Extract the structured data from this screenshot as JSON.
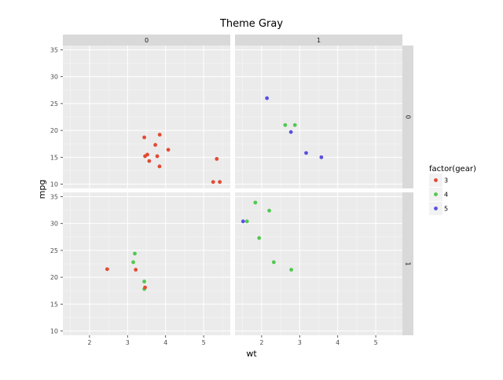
{
  "chart_data": {
    "type": "scatter",
    "title": "Theme Gray",
    "xlabel": "wt",
    "ylabel": "mpg",
    "xlim": [
      1.3,
      5.7
    ],
    "ylim": [
      9.2,
      35.8
    ],
    "x_ticks": [
      2,
      3,
      4,
      5
    ],
    "y_ticks": [
      10,
      15,
      20,
      25,
      30,
      35
    ],
    "grid": true,
    "facet_cols": [
      "0",
      "1"
    ],
    "facet_rows": [
      "0",
      "1"
    ],
    "legend": {
      "title": "factor(gear)",
      "position": "right",
      "entries": [
        {
          "label": "3",
          "color": "#E24A33"
        },
        {
          "label": "4",
          "color": "#50C850"
        },
        {
          "label": "5",
          "color": "#5A4FE0"
        }
      ]
    },
    "panels": [
      {
        "col": 0,
        "row": 0,
        "points": [
          {
            "x": 3.44,
            "y": 18.7,
            "g": 0
          },
          {
            "x": 3.46,
            "y": 15.2,
            "g": 0
          },
          {
            "x": 3.52,
            "y": 15.5,
            "g": 0
          },
          {
            "x": 3.57,
            "y": 14.3,
            "g": 0
          },
          {
            "x": 3.73,
            "y": 17.3,
            "g": 0
          },
          {
            "x": 3.78,
            "y": 15.2,
            "g": 0
          },
          {
            "x": 3.84,
            "y": 13.3,
            "g": 0
          },
          {
            "x": 3.845,
            "y": 19.2,
            "g": 0
          },
          {
            "x": 4.07,
            "y": 16.4,
            "g": 0
          },
          {
            "x": 5.25,
            "y": 10.4,
            "g": 0
          },
          {
            "x": 5.345,
            "y": 14.7,
            "g": 0
          },
          {
            "x": 5.424,
            "y": 10.4,
            "g": 0
          }
        ]
      },
      {
        "col": 1,
        "row": 0,
        "points": [
          {
            "x": 2.14,
            "y": 26.0,
            "g": 2
          },
          {
            "x": 2.62,
            "y": 21.0,
            "g": 1
          },
          {
            "x": 2.77,
            "y": 19.7,
            "g": 2
          },
          {
            "x": 2.875,
            "y": 21.0,
            "g": 1
          },
          {
            "x": 3.17,
            "y": 15.8,
            "g": 2
          },
          {
            "x": 3.57,
            "y": 15.0,
            "g": 2
          }
        ]
      },
      {
        "col": 0,
        "row": 1,
        "points": [
          {
            "x": 2.465,
            "y": 21.5,
            "g": 0
          },
          {
            "x": 3.15,
            "y": 22.8,
            "g": 1
          },
          {
            "x": 3.19,
            "y": 24.4,
            "g": 1
          },
          {
            "x": 3.215,
            "y": 21.4,
            "g": 0
          },
          {
            "x": 3.44,
            "y": 19.2,
            "g": 1
          },
          {
            "x": 3.44,
            "y": 17.8,
            "g": 1
          },
          {
            "x": 3.46,
            "y": 18.1,
            "g": 0
          }
        ]
      },
      {
        "col": 1,
        "row": 1,
        "points": [
          {
            "x": 1.513,
            "y": 30.4,
            "g": 2
          },
          {
            "x": 1.615,
            "y": 30.4,
            "g": 1
          },
          {
            "x": 1.835,
            "y": 33.9,
            "g": 1
          },
          {
            "x": 1.935,
            "y": 27.3,
            "g": 1
          },
          {
            "x": 2.2,
            "y": 32.4,
            "g": 1
          },
          {
            "x": 2.32,
            "y": 22.8,
            "g": 1
          },
          {
            "x": 2.78,
            "y": 21.4,
            "g": 1
          }
        ]
      }
    ]
  }
}
